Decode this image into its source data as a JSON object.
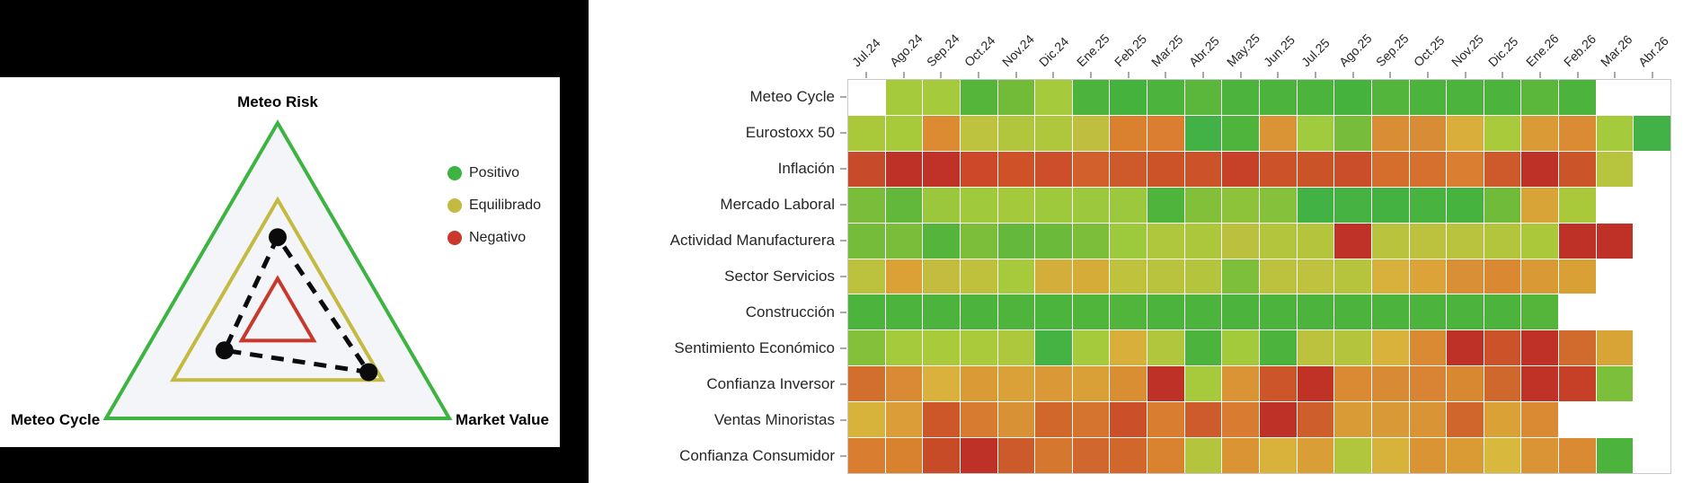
{
  "chart_data": [
    {
      "type": "heatmap",
      "x_labels": [
        "Jul.24",
        "Ago.24",
        "Sep.24",
        "Oct.24",
        "Nov.24",
        "Dic.24",
        "Ene.25",
        "Feb.25",
        "Mar.25",
        "Abr.25",
        "May.25",
        "Jun.25",
        "Jul.25",
        "Ago.25",
        "Sep.25",
        "Oct.25",
        "Nov.25",
        "Dic.25",
        "Ene.26",
        "Feb.26",
        "Mar.26",
        "Abr.26"
      ],
      "y_labels": [
        "Meteo Cycle",
        "Eurostoxx 50",
        "Inflación",
        "Mercado Laboral",
        "Actividad Manufacturera",
        "Sector Servicios",
        "Construcción",
        "Sentimiento Económico",
        "Confianza Inversor",
        "Ventas Minoristas",
        "Confianza Consumidor"
      ],
      "no_data_color": "#FFFFFF",
      "color_semantics": {
        "green": "Positivo",
        "yellow": "Equilibrado",
        "red": "Negativo"
      },
      "cell_colors": [
        [
          null,
          "#A5CA3B",
          "#A5CA3B",
          "#55B53B",
          "#72BB39",
          "#A5CA3B",
          "#4CB43C",
          "#45B23E",
          "#4CB43C",
          "#5BB73B",
          "#4CB43C",
          "#4CB43C",
          "#4CB43C",
          "#45B23E",
          "#53B53B",
          "#4CB43C",
          "#4CB43C",
          "#4CB43C",
          "#5BB73B",
          "#4CB43C",
          null,
          null
        ],
        [
          "#A9C93B",
          "#A7CA3B",
          "#DC8B33",
          "#BDC23F",
          "#B1C63D",
          "#AFC73C",
          "#C0BE3E",
          "#DA8130",
          "#DB7E31",
          "#43B246",
          "#4EB43B",
          "#DA9435",
          "#A0CB3F",
          "#77BC3A",
          "#D98E35",
          "#D88C36",
          "#D9AE3A",
          "#A8CA3B",
          "#DA9A36",
          "#DA8B33",
          "#A5CA3C",
          "#43B246"
        ],
        [
          "#C74A2A",
          "#BE3126",
          "#C03227",
          "#CC4829",
          "#CE5128",
          "#CD4E2A",
          "#D2602C",
          "#CE5A2C",
          "#CC5228",
          "#CC5229",
          "#C74128",
          "#CC5229",
          "#CB5328",
          "#CA4E29",
          "#D56E2D",
          "#D5702E",
          "#DA7E31",
          "#CE5A2B",
          "#BE3126",
          "#CC5429",
          "#B7C43E",
          null
        ],
        [
          "#79BD3A",
          "#62B83B",
          "#9BC73C",
          "#A0C93C",
          "#A4CA3B",
          "#9FC93D",
          "#9CC83D",
          "#9CC83D",
          "#4EB43C",
          "#82C03A",
          "#8CC33B",
          "#85C13A",
          "#43B244",
          "#45B241",
          "#44B240",
          "#48B33E",
          "#47B33F",
          "#70BB3A",
          "#D9A437",
          "#A9C93B",
          null,
          null
        ],
        [
          "#74BC39",
          "#79BD3A",
          "#54B43B",
          "#7CBE39",
          "#64B83B",
          "#6CBA3A",
          "#7CBE39",
          "#9DC93D",
          "#AEC73C",
          "#ADC73C",
          "#BBC13E",
          "#B3C53D",
          "#B5C43D",
          "#BE3227",
          "#B9C33E",
          "#BCC23E",
          "#B9C33D",
          "#B3C53D",
          "#ABC83B",
          "#BE3126",
          "#BF3126",
          null
        ],
        [
          "#BCC13E",
          "#DCA136",
          "#C4BC3E",
          "#BFC13D",
          "#A6CA3B",
          "#D4AE3A",
          "#D5AC38",
          "#BFC23D",
          "#B9C33D",
          "#B5C43D",
          "#7DBF3A",
          "#BDC23E",
          "#BEC23E",
          "#B6C43D",
          "#D8B13C",
          "#DBA338",
          "#D98F35",
          "#DA8832",
          "#D99A36",
          "#D9A036",
          null,
          null
        ],
        [
          "#4CB43C",
          "#4CB43C",
          "#4CB43C",
          "#4CB43C",
          "#4EB43C",
          "#4BB43D",
          "#50B53B",
          "#52B53B",
          "#4CB43C",
          "#4CB43C",
          "#4CB43C",
          "#4CB43C",
          "#4CB43C",
          "#4CB43C",
          "#4CB43C",
          "#4CB43C",
          "#4CB43C",
          "#4CB43C",
          "#55B53B",
          null,
          null,
          null
        ],
        [
          "#84C039",
          "#A5CA3B",
          "#A8CA3B",
          "#AAC93B",
          "#ADC83C",
          "#45B244",
          "#A5CA3B",
          "#D8AF3B",
          "#B1C63D",
          "#4CB43D",
          "#A2CA3B",
          "#4CB43D",
          "#BCC23E",
          "#B5C43D",
          "#D8B23B",
          "#DA8A33",
          "#BE3126",
          "#CC5329",
          "#BF3126",
          "#D06A2D",
          "#D9A436",
          null
        ],
        [
          "#D36F2E",
          "#DA8A34",
          "#D9B13C",
          "#DA9A36",
          "#D9A137",
          "#DA9837",
          "#D9A037",
          "#DA8E34",
          "#BE3126",
          "#A7CA3C",
          "#DA9435",
          "#CC5629",
          "#C03126",
          "#DA8A33",
          "#D98A34",
          "#D98434",
          "#D98832",
          "#CE682C",
          "#C03126",
          "#C64027",
          "#7CBF3A",
          null
        ],
        [
          "#D8B33C",
          "#DA9D37",
          "#CE572A",
          "#D77B30",
          "#D99136",
          "#D2672C",
          "#D4742F",
          "#CB4F28",
          "#D97E31",
          "#CE5B2B",
          "#D97C31",
          "#BE3126",
          "#CE5E2B",
          "#D99B36",
          "#D99936",
          "#D99435",
          "#D0662C",
          "#D9A136",
          "#DA8A33",
          null,
          null,
          null
        ],
        [
          "#D97D30",
          "#D8812F",
          "#C84B28",
          "#BE3126",
          "#CC5A2A",
          "#D5772E",
          "#D0672E",
          "#D2672C",
          "#D9822F",
          "#B4C43D",
          "#DA9434",
          "#D8B23B",
          "#DA9E36",
          "#B1C63D",
          "#D8B33C",
          "#DA9434",
          "#DA9B35",
          "#D9B83E",
          "#DA9435",
          "#DA8A33",
          "#4CB43C",
          null
        ]
      ]
    },
    {
      "type": "ternary-radar",
      "axes": {
        "top": "Meteo Risk",
        "bottom_left": "Meteo Cycle",
        "bottom_right": "Market Value"
      },
      "rings": [
        {
          "label": "Positivo",
          "color": "#3DB441",
          "radius": 1.0
        },
        {
          "label": "Equilibrado",
          "color": "#C3BA42",
          "radius": 0.61
        },
        {
          "label": "Negativo",
          "color": "#C8392C",
          "radius": 0.21
        }
      ],
      "series": {
        "line_style": "dashed",
        "color": "#0B0B0B",
        "values": {
          "meteo_risk": 0.42,
          "meteo_cycle": 0.31,
          "market_value": 0.53
        }
      },
      "plot_fill": "#F4F5F9"
    }
  ]
}
